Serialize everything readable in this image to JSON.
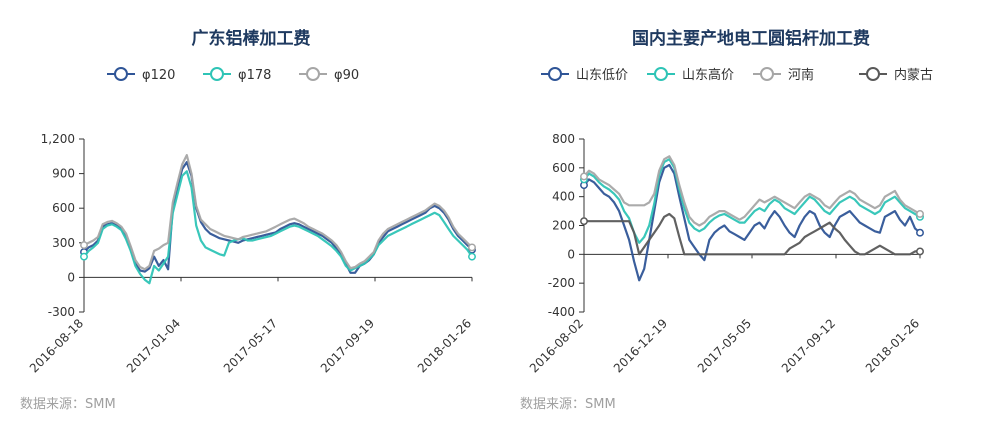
{
  "charts": [
    {
      "title": "广东铝棒加工费",
      "source": "数据来源：SMM",
      "chart_data": {
        "type": "line",
        "title": "广东铝棒加工费",
        "ylim": [
          -300,
          1200
        ],
        "yticks": [
          "1,200",
          "900",
          "600",
          "300",
          "0",
          "-300"
        ],
        "ytick_values": [
          1200,
          900,
          600,
          300,
          0,
          -300
        ],
        "xticks": [
          "2016-08-18",
          "2017-01-04",
          "2017-05-17",
          "2017-09-19",
          "2018-01-26"
        ],
        "x_range": [
          "2016-08-18",
          "2018-01-26"
        ],
        "legend_position": "top-center",
        "series": [
          {
            "name": "φ120",
            "color": "#2f5597",
            "values": [
              220,
              260,
              280,
              320,
              440,
              460,
              470,
              450,
              420,
              350,
              250,
              120,
              60,
              50,
              80,
              180,
              100,
              150,
              70,
              600,
              780,
              940,
              1000,
              880,
              600,
              480,
              420,
              380,
              360,
              340,
              330,
              320,
              310,
              300,
              320,
              330,
              340,
              350,
              360,
              370,
              380,
              390,
              420,
              440,
              460,
              470,
              460,
              440,
              420,
              400,
              380,
              360,
              330,
              300,
              250,
              200,
              120,
              40,
              40,
              100,
              120,
              150,
              200,
              300,
              350,
              400,
              420,
              440,
              460,
              480,
              500,
              520,
              540,
              560,
              600,
              620,
              600,
              560,
              500,
              420,
              360,
              320,
              280,
              240
            ]
          },
          {
            "name": "φ178",
            "color": "#2ec4b6",
            "values": [
              180,
              230,
              260,
              300,
              420,
              450,
              460,
              440,
              410,
              330,
              230,
              100,
              30,
              -20,
              -50,
              100,
              60,
              120,
              180,
              560,
              720,
              880,
              920,
              780,
              450,
              320,
              260,
              240,
              220,
              200,
              190,
              300,
              320,
              330,
              340,
              320,
              320,
              330,
              340,
              350,
              360,
              380,
              400,
              420,
              440,
              450,
              440,
              420,
              400,
              380,
              360,
              330,
              300,
              270,
              230,
              180,
              100,
              60,
              80,
              100,
              120,
              160,
              200,
              280,
              320,
              360,
              380,
              400,
              420,
              440,
              460,
              480,
              500,
              520,
              540,
              560,
              540,
              480,
              420,
              360,
              320,
              280,
              240,
              180
            ]
          },
          {
            "name": "φ90",
            "color": "#a6a6a6",
            "values": [
              280,
              300,
              320,
              350,
              460,
              480,
              490,
              470,
              440,
              380,
              270,
              150,
              90,
              70,
              100,
              230,
              250,
              280,
              300,
              650,
              820,
              980,
              1060,
              900,
              620,
              500,
              460,
              420,
              400,
              380,
              360,
              350,
              340,
              330,
              350,
              360,
              370,
              380,
              390,
              400,
              420,
              440,
              460,
              480,
              500,
              510,
              490,
              470,
              440,
              420,
              400,
              380,
              350,
              320,
              280,
              220,
              140,
              80,
              90,
              120,
              140,
              180,
              220,
              320,
              380,
              420,
              440,
              460,
              480,
              500,
              520,
              540,
              560,
              580,
              610,
              640,
              620,
              580,
              520,
              440,
              380,
              340,
              300,
              260
            ]
          }
        ]
      }
    },
    {
      "title": "国内主要产地电工圆铝杆加工费",
      "source": "数据来源：SMM",
      "chart_data": {
        "type": "line",
        "title": "国内主要产地电工圆铝杆加工费",
        "ylim": [
          -400,
          800
        ],
        "yticks": [
          "800",
          "600",
          "400",
          "200",
          "0",
          "-200",
          "-400"
        ],
        "ytick_values": [
          800,
          600,
          400,
          200,
          0,
          -200,
          -400
        ],
        "xticks": [
          "2016-08-02",
          "2016-12-19",
          "2017-05-05",
          "2017-09-12",
          "2018-01-26"
        ],
        "x_range": [
          "2016-08-02",
          "2018-01-26"
        ],
        "legend_position": "top-center",
        "series": [
          {
            "name": "山东低价",
            "color": "#2f5597",
            "values": [
              480,
              520,
              500,
              460,
              420,
              400,
              360,
              300,
              200,
              100,
              -50,
              -180,
              -100,
              100,
              300,
              500,
              600,
              620,
              560,
              400,
              250,
              100,
              50,
              0,
              -40,
              100,
              150,
              180,
              200,
              160,
              140,
              120,
              100,
              150,
              200,
              220,
              180,
              250,
              300,
              260,
              200,
              150,
              120,
              200,
              260,
              300,
              280,
              200,
              150,
              120,
              200,
              260,
              280,
              300,
              260,
              220,
              200,
              180,
              160,
              150,
              260,
              280,
              300,
              240,
              200,
              260,
              180,
              150
            ]
          },
          {
            "name": "山东高价",
            "color": "#2ec4b6",
            "values": [
              520,
              560,
              540,
              500,
              470,
              450,
              420,
              380,
              300,
              250,
              150,
              80,
              120,
              200,
              350,
              550,
              640,
              660,
              600,
              450,
              320,
              220,
              180,
              160,
              180,
              220,
              250,
              270,
              280,
              260,
              240,
              220,
              220,
              260,
              300,
              320,
              300,
              350,
              380,
              360,
              320,
              300,
              280,
              320,
              360,
              400,
              380,
              340,
              300,
              280,
              320,
              360,
              380,
              400,
              380,
              340,
              320,
              300,
              280,
              300,
              360,
              380,
              400,
              360,
              320,
              300,
              280,
              260
            ]
          },
          {
            "name": "河南",
            "color": "#a6a6a6",
            "values": [
              540,
              580,
              560,
              520,
              500,
              480,
              450,
              420,
              360,
              340,
              340,
              340,
              340,
              360,
              420,
              580,
              660,
              680,
              620,
              480,
              360,
              260,
              220,
              200,
              220,
              260,
              280,
              300,
              300,
              280,
              260,
              240,
              260,
              300,
              340,
              380,
              360,
              380,
              400,
              380,
              360,
              340,
              320,
              360,
              400,
              420,
              400,
              380,
              340,
              320,
              360,
              400,
              420,
              440,
              420,
              380,
              360,
              340,
              320,
              340,
              400,
              420,
              440,
              380,
              340,
              320,
              300,
              280
            ]
          },
          {
            "name": "内蒙古",
            "color": "#595959",
            "values": [
              230,
              230,
              230,
              230,
              230,
              230,
              230,
              230,
              230,
              230,
              150,
              0,
              50,
              100,
              150,
              200,
              260,
              280,
              250,
              120,
              0,
              0,
              0,
              0,
              0,
              0,
              0,
              0,
              0,
              0,
              0,
              0,
              0,
              0,
              0,
              0,
              0,
              0,
              0,
              0,
              0,
              40,
              60,
              80,
              120,
              140,
              160,
              180,
              200,
              220,
              180,
              150,
              100,
              60,
              20,
              0,
              0,
              20,
              40,
              60,
              40,
              20,
              0,
              0,
              0,
              0,
              20,
              20
            ]
          }
        ]
      }
    }
  ]
}
